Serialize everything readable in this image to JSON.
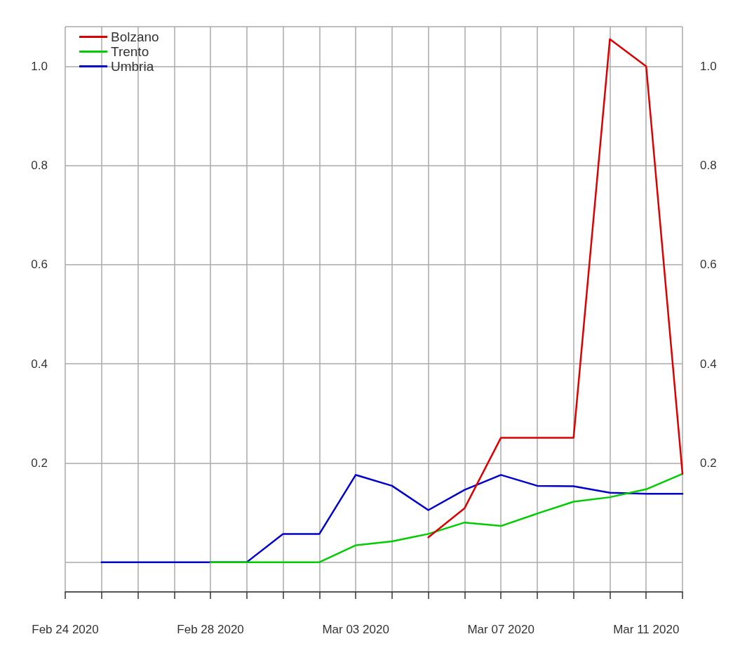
{
  "chart_data": {
    "type": "line",
    "x": [
      "2020-02-25",
      "2020-02-26",
      "2020-02-27",
      "2020-02-28",
      "2020-02-29",
      "2020-03-01",
      "2020-03-02",
      "2020-03-03",
      "2020-03-04",
      "2020-03-05",
      "2020-03-06",
      "2020-03-07",
      "2020-03-08",
      "2020-03-09",
      "2020-03-10",
      "2020-03-11",
      "2020-03-12"
    ],
    "series": [
      {
        "name": "Umbria",
        "color": "#0000cc",
        "values": [
          0,
          0,
          0,
          0,
          0,
          0.057,
          0.057,
          0.176,
          0.154,
          0.105,
          0.146,
          0.176,
          0.154,
          0.153,
          0.14,
          0.138,
          0.138
        ]
      },
      {
        "name": "Trento",
        "color": "#00cc00",
        "values": [
          null,
          null,
          null,
          0,
          0,
          0,
          0,
          0.034,
          0.042,
          0.057,
          0.08,
          0.073,
          0.098,
          0.122,
          0.131,
          0.147,
          0.178
        ]
      },
      {
        "name": "Bolzano",
        "color": "#dd0000",
        "values": [
          null,
          null,
          null,
          null,
          null,
          null,
          null,
          null,
          null,
          0.05,
          0.109,
          0.251,
          0.251,
          0.251,
          1.055,
          1.0,
          0.178
        ]
      }
    ],
    "xlim": [
      "2020-02-24",
      "2020-03-12"
    ],
    "xticks": [
      {
        "value": "2020-02-24",
        "label": "Feb 24 2020"
      },
      {
        "value": "2020-02-25",
        "label": null
      },
      {
        "value": "2020-02-26",
        "label": null
      },
      {
        "value": "2020-02-27",
        "label": null
      },
      {
        "value": "2020-02-28",
        "label": "Feb 28 2020"
      },
      {
        "value": "2020-02-29",
        "label": null
      },
      {
        "value": "2020-03-01",
        "label": null
      },
      {
        "value": "2020-03-02",
        "label": null
      },
      {
        "value": "2020-03-03",
        "label": "Mar 03 2020"
      },
      {
        "value": "2020-03-04",
        "label": null
      },
      {
        "value": "2020-03-05",
        "label": null
      },
      {
        "value": "2020-03-06",
        "label": null
      },
      {
        "value": "2020-03-07",
        "label": "Mar 07 2020"
      },
      {
        "value": "2020-03-08",
        "label": null
      },
      {
        "value": "2020-03-09",
        "label": null
      },
      {
        "value": "2020-03-10",
        "label": null
      },
      {
        "value": "2020-03-11",
        "label": "Mar 11 2020"
      },
      {
        "value": "2020-03-12",
        "label": null
      }
    ],
    "ylim": [
      -0.06,
      1.08
    ],
    "yticks": [
      0.2,
      0.4,
      0.6,
      0.8,
      {
        "value": 1,
        "label": "1.0"
      }
    ],
    "y2lim": [
      -0.06,
      1.08
    ],
    "y2ticks": [
      0.2,
      0.4,
      0.6,
      0.8,
      {
        "value": 1,
        "label": "1.0"
      }
    ],
    "grid": true,
    "legend": "top left",
    "marker": "none",
    "line_style": "solid"
  }
}
